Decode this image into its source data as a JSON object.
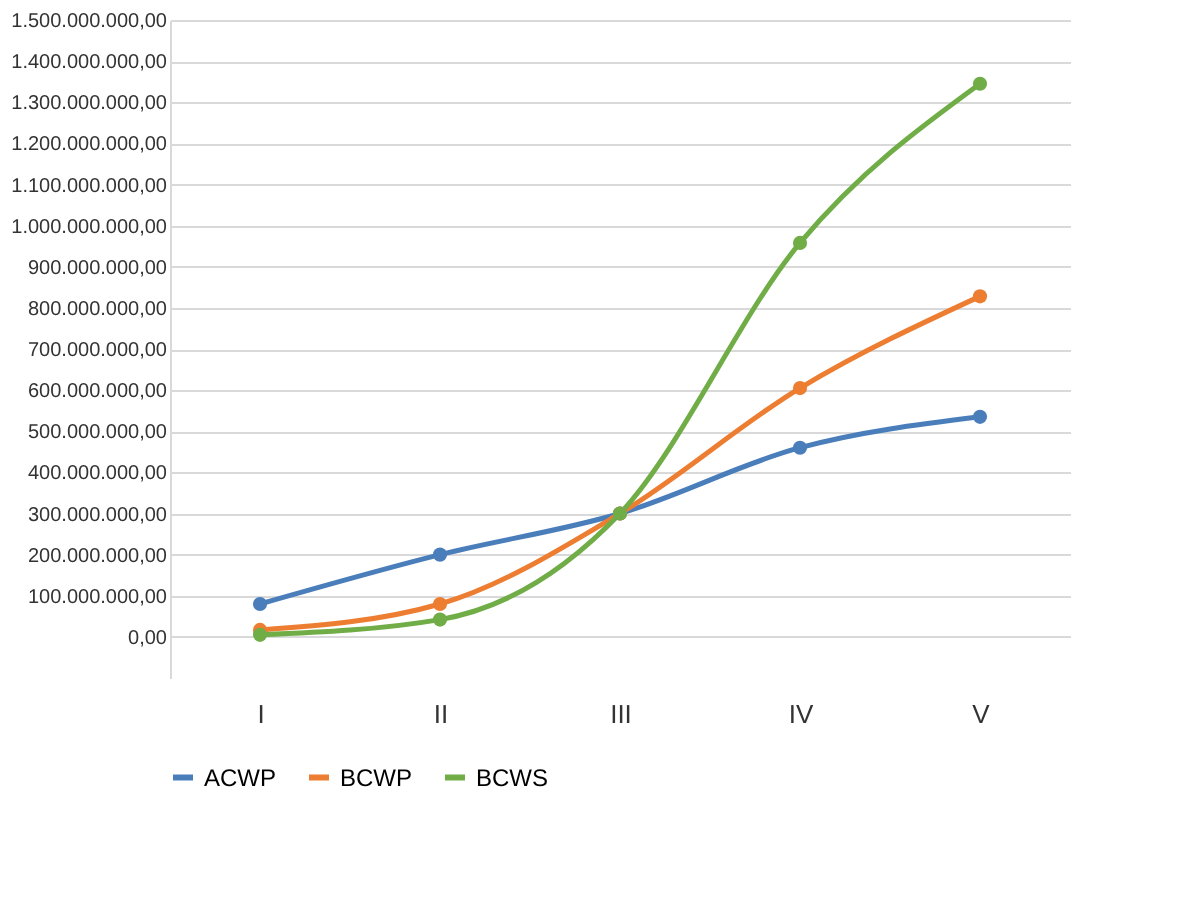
{
  "chart_data": {
    "type": "line",
    "categories": [
      "I",
      "II",
      "III",
      "IV",
      "V"
    ],
    "series": [
      {
        "name": "ACWP",
        "color": "#4a7ebb",
        "values": [
          80000000,
          200000000,
          300000000,
          460000000,
          535000000
        ]
      },
      {
        "name": "BCWP",
        "color": "#ed7d31",
        "values": [
          17000000,
          80000000,
          300000000,
          605000000,
          828000000
        ]
      },
      {
        "name": "BCWS",
        "color": "#70ad47",
        "values": [
          5000000,
          42000000,
          300000000,
          958000000,
          1345000000
        ]
      }
    ],
    "ylim": [
      -100000000,
      1500000000
    ],
    "yticks": [
      {
        "value": 0,
        "label": "0,00"
      },
      {
        "value": 100000000,
        "label": "100.000.000,00"
      },
      {
        "value": 200000000,
        "label": "200.000.000,00"
      },
      {
        "value": 300000000,
        "label": "300.000.000,00"
      },
      {
        "value": 400000000,
        "label": "400.000.000,00"
      },
      {
        "value": 500000000,
        "label": "500.000.000,00"
      },
      {
        "value": 600000000,
        "label": "600.000.000,00"
      },
      {
        "value": 700000000,
        "label": "700.000.000,00"
      },
      {
        "value": 800000000,
        "label": "800.000.000,00"
      },
      {
        "value": 900000000,
        "label": "900.000.000,00"
      },
      {
        "value": 1000000000,
        "label": "1.000.000.000,00"
      },
      {
        "value": 1100000000,
        "label": "1.100.000.000,00"
      },
      {
        "value": 1200000000,
        "label": "1.200.000.000,00"
      },
      {
        "value": 1300000000,
        "label": "1.300.000.000,00"
      },
      {
        "value": 1400000000,
        "label": "1.400.000.000,00"
      },
      {
        "value": 1500000000,
        "label": "1.500.000.000,00"
      }
    ],
    "grid": "y",
    "legend": "bottom",
    "marker": "circle",
    "line_style": "solid"
  }
}
